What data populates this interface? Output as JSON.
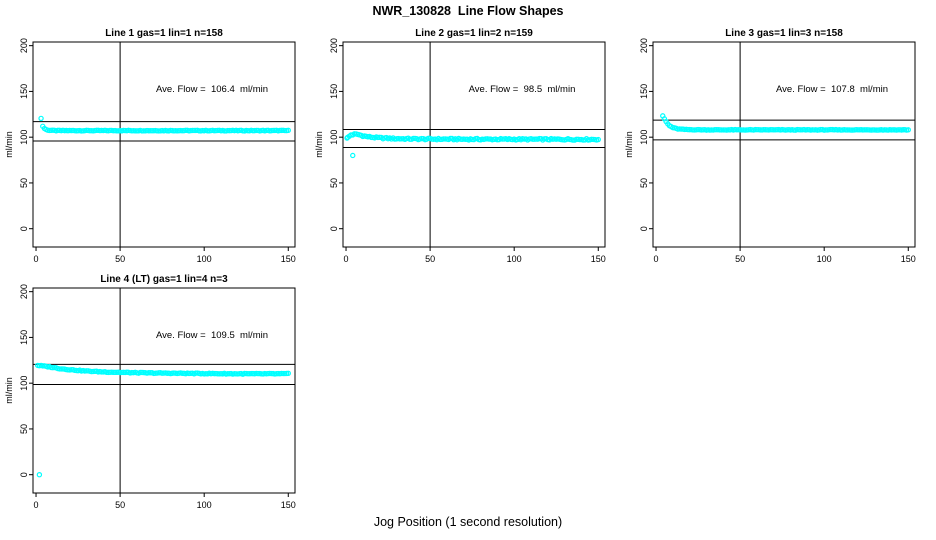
{
  "title": "NWR_130828  Line Flow Shapes",
  "xlabel": "Jog Position (1 second resolution)",
  "colors": {
    "marker": "#00FFFF",
    "axis": "#000000",
    "background": "#FFFFFF"
  },
  "axes": {
    "x_ticks": [
      0,
      50,
      100,
      150
    ],
    "y_ticks": [
      0,
      50,
      100,
      150,
      200
    ],
    "ylabel": "ml/min",
    "x_range": [
      -1.8,
      154
    ],
    "y_range": [
      -20,
      204
    ]
  },
  "chart_data": [
    {
      "type": "scatter",
      "title": "Line 1 gas=1 lin=1 n=158",
      "ave_flow": 106.4,
      "ave_flow_label": "Ave. Flow =  106.4  ml/min",
      "n": 158,
      "upper_limit": 117.0,
      "lower_limit": 95.8,
      "vline_x": 50,
      "series": {
        "x_start": 4,
        "x_end": 150,
        "step": 1,
        "noise": 0.35,
        "keypoints": [
          [
            4,
            112
          ],
          [
            5,
            109.5
          ],
          [
            6,
            108.3
          ],
          [
            8,
            107.5
          ],
          [
            12,
            107.2
          ],
          [
            150,
            107.2
          ]
        ]
      },
      "extra_points": [
        [
          3,
          120.5
        ]
      ]
    },
    {
      "type": "scatter",
      "title": "Line 2 gas=1 lin=2 n=159",
      "ave_flow": 98.5,
      "ave_flow_label": "Ave. Flow =  98.5  ml/min",
      "n": 159,
      "upper_limit": 108.4,
      "lower_limit": 88.7,
      "vline_x": 50,
      "series": {
        "x_start": 1,
        "x_end": 150,
        "step": 1,
        "noise": 0.8,
        "keypoints": [
          [
            1,
            99.5
          ],
          [
            2,
            101
          ],
          [
            3,
            102.5
          ],
          [
            5,
            103.2
          ],
          [
            7,
            103
          ],
          [
            9,
            102
          ],
          [
            12,
            100.8
          ],
          [
            16,
            99.8
          ],
          [
            22,
            99
          ],
          [
            30,
            98.4
          ],
          [
            45,
            98
          ],
          [
            70,
            97.8
          ],
          [
            150,
            97.6
          ]
        ]
      },
      "extra_points": [
        [
          4,
          80
        ],
        [
          0.6,
          99
        ]
      ]
    },
    {
      "type": "scatter",
      "title": "Line 3 gas=1 lin=3 n=158",
      "ave_flow": 107.8,
      "ave_flow_label": "Ave. Flow =  107.8  ml/min",
      "n": 158,
      "upper_limit": 118.6,
      "lower_limit": 97.0,
      "vline_x": 50,
      "series": {
        "x_start": 4,
        "x_end": 150,
        "step": 1,
        "noise": 0.3,
        "keypoints": [
          [
            4,
            123
          ],
          [
            5,
            120
          ],
          [
            6,
            117
          ],
          [
            7,
            114.5
          ],
          [
            8,
            112.5
          ],
          [
            10,
            110.5
          ],
          [
            13,
            109
          ],
          [
            18,
            108.3
          ],
          [
            30,
            108
          ],
          [
            150,
            108
          ]
        ]
      },
      "extra_points": []
    },
    {
      "type": "scatter",
      "title": "Line 4 (LT) gas=1 lin=4 n=3",
      "ave_flow": 109.5,
      "ave_flow_label": "Ave. Flow =  109.5  ml/min",
      "n": 3,
      "upper_limit": 120.5,
      "lower_limit": 98.6,
      "vline_x": 50,
      "series": {
        "x_start": 1,
        "x_end": 150,
        "step": 1,
        "noise": 0.45,
        "keypoints": [
          [
            1,
            119.5
          ],
          [
            4,
            118.8
          ],
          [
            8,
            117.8
          ],
          [
            14,
            116
          ],
          [
            20,
            114.8
          ],
          [
            28,
            113.5
          ],
          [
            38,
            112.5
          ],
          [
            50,
            111.8
          ],
          [
            65,
            111.2
          ],
          [
            85,
            110.8
          ],
          [
            110,
            110.4
          ],
          [
            130,
            110.2
          ],
          [
            150,
            110.3
          ]
        ]
      },
      "extra_points": [
        [
          2,
          0
        ]
      ]
    }
  ]
}
